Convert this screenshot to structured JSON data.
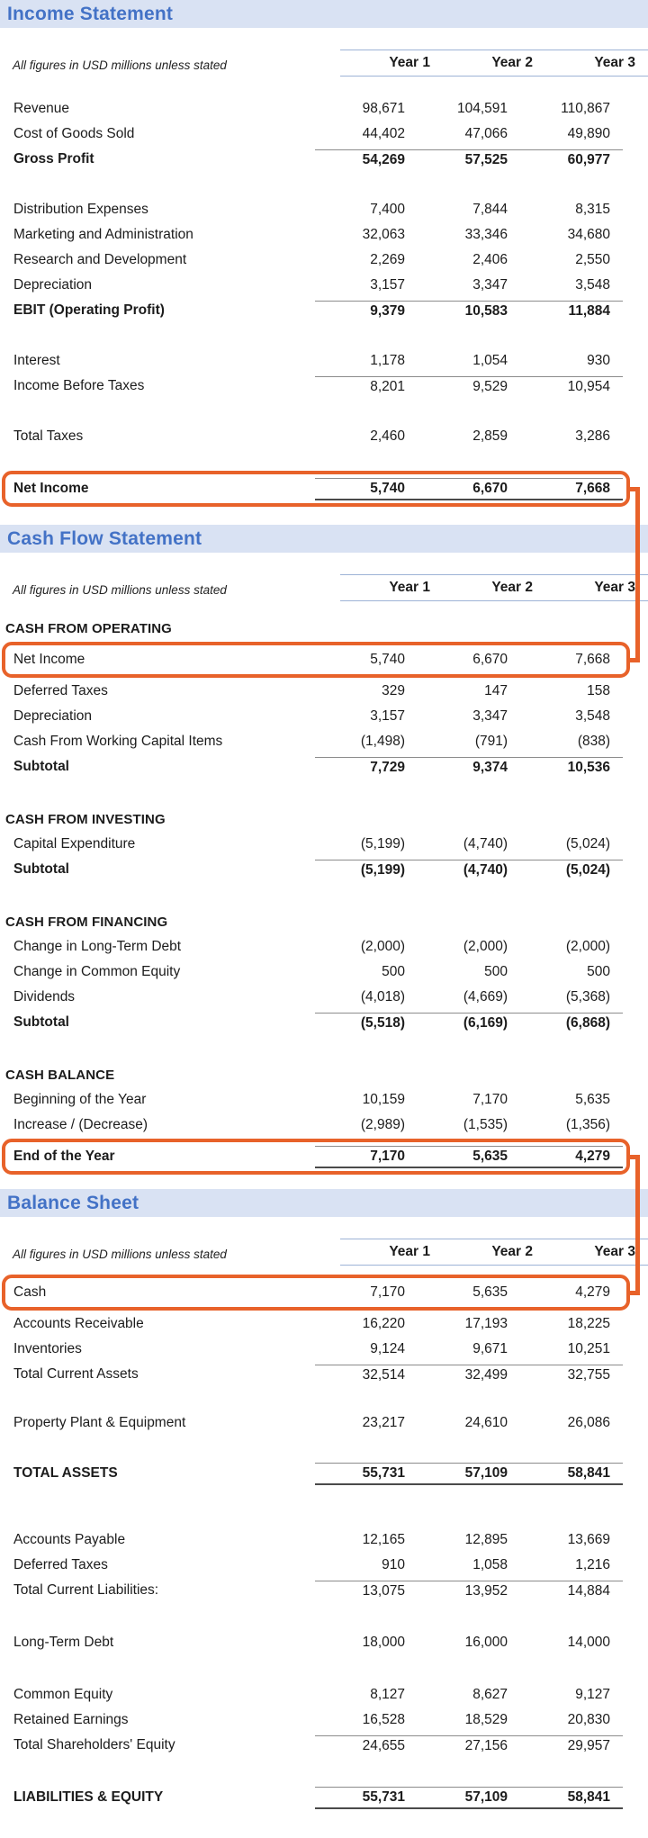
{
  "page": {
    "note": "All figures in USD millions unless stated",
    "columns": [
      "Year 1",
      "Year 2",
      "Year 3"
    ],
    "accent_orange": "#E8622A",
    "banner_blue_bg": "#D9E2F3",
    "title_blue": "#4372C6"
  },
  "statements": [
    {
      "title": "Income Statement",
      "groups": [
        {
          "rows": [
            {
              "label": "Revenue",
              "values": [
                "98,671",
                "104,591",
                "110,867"
              ]
            },
            {
              "label": "Cost of Goods Sold",
              "values": [
                "44,402",
                "47,066",
                "49,890"
              ]
            },
            {
              "label": "Gross Profit",
              "values": [
                "54,269",
                "57,525",
                "60,977"
              ],
              "b": true,
              "rt": true
            }
          ]
        },
        {
          "rows": [
            {
              "label": "Distribution Expenses",
              "values": [
                "7,400",
                "7,844",
                "8,315"
              ]
            },
            {
              "label": "Marketing and Administration",
              "values": [
                "32,063",
                "33,346",
                "34,680"
              ]
            },
            {
              "label": "Research and Development",
              "values": [
                "2,269",
                "2,406",
                "2,550"
              ]
            },
            {
              "label": "Depreciation",
              "values": [
                "3,157",
                "3,347",
                "3,548"
              ]
            },
            {
              "label": "EBIT (Operating Profit)",
              "values": [
                "9,379",
                "10,583",
                "11,884"
              ],
              "b": true,
              "rt": true
            }
          ]
        },
        {
          "rows": [
            {
              "label": "Interest",
              "values": [
                "1,178",
                "1,054",
                "930"
              ]
            },
            {
              "label": "Income Before Taxes",
              "values": [
                "8,201",
                "9,529",
                "10,954"
              ],
              "rt": true
            }
          ]
        },
        {
          "rows": [
            {
              "label": "Total Taxes",
              "values": [
                "2,460",
                "2,859",
                "3,286"
              ]
            }
          ]
        },
        {
          "rows": [
            {
              "label": "Net Income",
              "values": [
                "5,740",
                "6,670",
                "7,668"
              ],
              "b": true,
              "rt": true,
              "rb": true,
              "box": "is-net-income"
            }
          ]
        }
      ]
    },
    {
      "title": "Cash Flow Statement",
      "groups": [
        {
          "rows": [
            {
              "label": "CASH FROM OPERATING",
              "section": true
            },
            {
              "label": "Net Income",
              "values": [
                "5,740",
                "6,670",
                "7,668"
              ],
              "box": "cf-net-income"
            },
            {
              "label": "Deferred Taxes",
              "values": [
                "329",
                "147",
                "158"
              ]
            },
            {
              "label": "Depreciation",
              "values": [
                "3,157",
                "3,347",
                "3,548"
              ]
            },
            {
              "label": "Cash From Working Capital Items",
              "values": [
                "(1,498)",
                "(791)",
                "(838)"
              ]
            },
            {
              "label": "Subtotal",
              "values": [
                "7,729",
                "9,374",
                "10,536"
              ],
              "b": true,
              "rt": true
            }
          ]
        },
        {
          "rows": [
            {
              "label": "CASH FROM INVESTING",
              "section": true
            },
            {
              "label": "Capital Expenditure",
              "values": [
                "(5,199)",
                "(4,740)",
                "(5,024)"
              ]
            },
            {
              "label": "Subtotal",
              "values": [
                "(5,199)",
                "(4,740)",
                "(5,024)"
              ],
              "b": true,
              "rt": true
            }
          ]
        },
        {
          "rows": [
            {
              "label": "CASH FROM FINANCING",
              "section": true
            },
            {
              "label": "Change in Long-Term Debt",
              "values": [
                "(2,000)",
                "(2,000)",
                "(2,000)"
              ]
            },
            {
              "label": "Change in Common Equity",
              "values": [
                "500",
                "500",
                "500"
              ]
            },
            {
              "label": "Dividends",
              "values": [
                "(4,018)",
                "(4,669)",
                "(5,368)"
              ]
            },
            {
              "label": "Subtotal",
              "values": [
                "(5,518)",
                "(6,169)",
                "(6,868)"
              ],
              "b": true,
              "rt": true
            }
          ]
        },
        {
          "rows": [
            {
              "label": "CASH BALANCE",
              "section": true
            },
            {
              "label": "Beginning of the Year",
              "values": [
                "10,159",
                "7,170",
                "5,635"
              ]
            },
            {
              "label": "Increase / (Decrease)",
              "values": [
                "(2,989)",
                "(1,535)",
                "(1,356)"
              ]
            },
            {
              "label": "End of the Year",
              "values": [
                "7,170",
                "5,635",
                "4,279"
              ],
              "b": true,
              "rt": true,
              "rb": true,
              "box": "cf-end-year"
            }
          ]
        }
      ]
    },
    {
      "title": "Balance Sheet",
      "groups": [
        {
          "rows": [
            {
              "label": "Cash",
              "values": [
                "7,170",
                "5,635",
                "4,279"
              ],
              "box": "bs-cash"
            },
            {
              "label": "Accounts Receivable",
              "values": [
                "16,220",
                "17,193",
                "18,225"
              ]
            },
            {
              "label": "Inventories",
              "values": [
                "9,124",
                "9,671",
                "10,251"
              ]
            },
            {
              "label": "Total Current Assets",
              "values": [
                "32,514",
                "32,499",
                "32,755"
              ],
              "rt": true
            }
          ]
        },
        {
          "rows": [
            {
              "label": "Property Plant & Equipment",
              "values": [
                "23,217",
                "24,610",
                "26,086"
              ]
            }
          ]
        },
        {
          "rows": [
            {
              "label": "TOTAL ASSETS",
              "values": [
                "55,731",
                "57,109",
                "58,841"
              ],
              "b": true,
              "rt": true,
              "rb": true
            }
          ]
        },
        {
          "rows": [
            {
              "label": "Accounts Payable",
              "values": [
                "12,165",
                "12,895",
                "13,669"
              ]
            },
            {
              "label": "Deferred Taxes",
              "values": [
                "910",
                "1,058",
                "1,216"
              ]
            },
            {
              "label": "Total Current Liabilities:",
              "values": [
                "13,075",
                "13,952",
                "14,884"
              ],
              "rt": true
            }
          ]
        },
        {
          "rows": [
            {
              "label": "Long-Term Debt",
              "values": [
                "18,000",
                "16,000",
                "14,000"
              ]
            }
          ]
        },
        {
          "rows": [
            {
              "label": "Common Equity",
              "values": [
                "8,127",
                "8,627",
                "9,127"
              ]
            },
            {
              "label": "Retained Earnings",
              "values": [
                "16,528",
                "18,529",
                "20,830"
              ]
            },
            {
              "label": "Total Shareholders' Equity",
              "values": [
                "24,655",
                "27,156",
                "29,957"
              ],
              "rt": true
            }
          ]
        },
        {
          "rows": [
            {
              "label": "LIABILITIES & EQUITY",
              "values": [
                "55,731",
                "57,109",
                "58,841"
              ],
              "b": true,
              "rt": true,
              "rb": true
            }
          ]
        }
      ]
    }
  ],
  "links": [
    {
      "from": "is-net-income",
      "to": "cf-net-income"
    },
    {
      "from": "cf-end-year",
      "to": "bs-cash"
    }
  ]
}
